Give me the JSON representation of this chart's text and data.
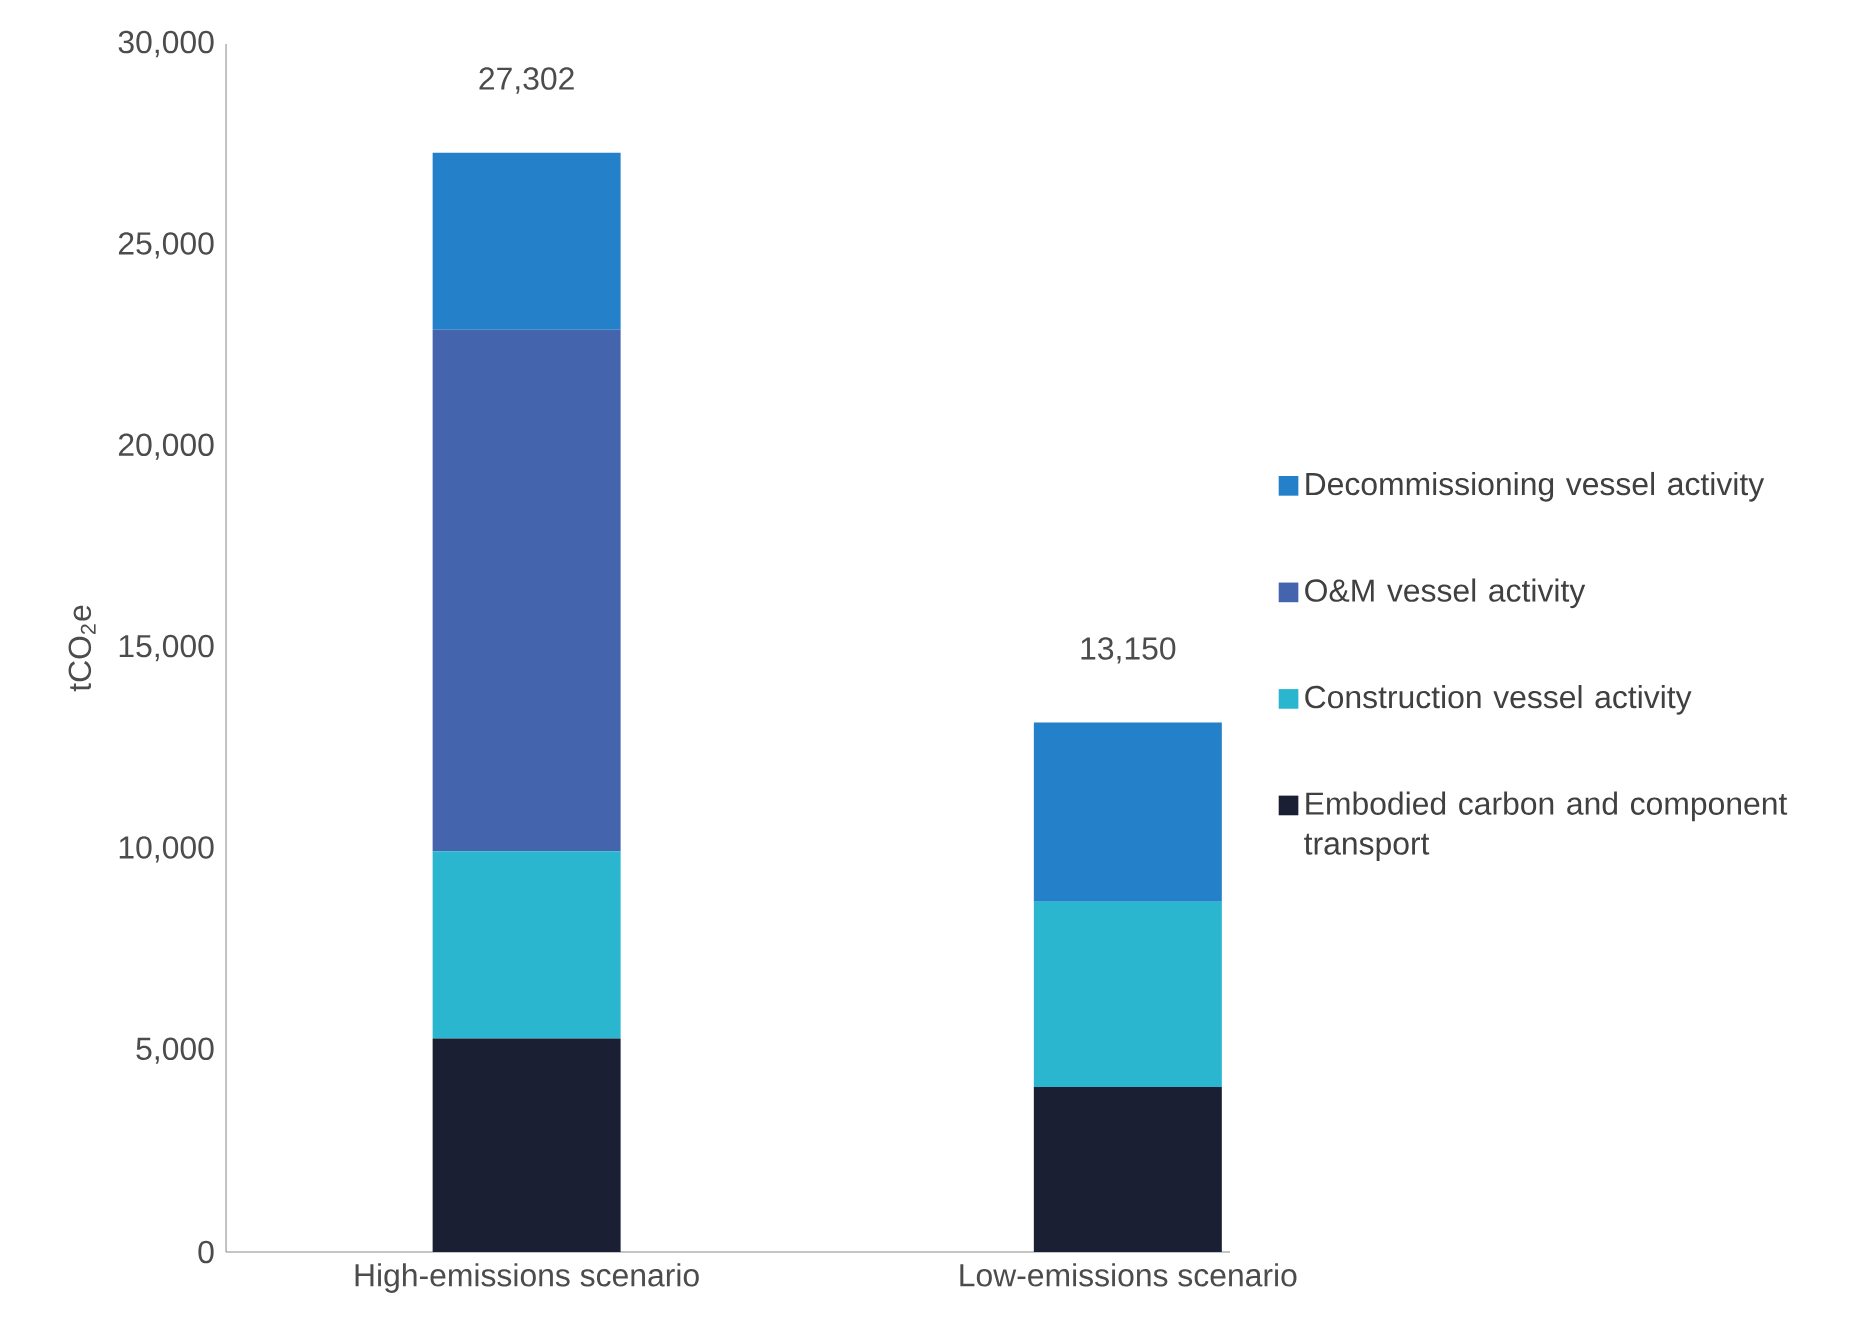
{
  "chart_data": {
    "type": "bar",
    "stacked": true,
    "ylabel": "tCO$_{2}$e",
    "categories": [
      "High-emissions scenario",
      "Low-emissions scenario"
    ],
    "series": [
      {
        "name": "Embodied carbon and component transport",
        "color": "#1a1f33",
        "values": [
          5300,
          4100
        ]
      },
      {
        "name": "Construction vessel activity",
        "color": "#29b6ce",
        "values": [
          4650,
          4600
        ]
      },
      {
        "name": "O&M vessel activity",
        "color": "#4464ad",
        "values": [
          12950,
          0
        ]
      },
      {
        "name": "Decommissioning vessel activity",
        "color": "#2480c8",
        "values": [
          4402,
          4450
        ]
      }
    ],
    "totals": [
      "27,302",
      "13,150"
    ],
    "ylim": [
      0,
      30000
    ],
    "yticks": [
      0,
      {
        "value": 5000,
        "label": "5,000"
      },
      {
        "value": 10000,
        "label": "10,000"
      },
      {
        "value": 15000,
        "label": "15,000"
      },
      {
        "value": 20000,
        "label": "20,000"
      },
      {
        "value": 25000,
        "label": "25,000"
      },
      {
        "value": 30000,
        "label": "30,000"
      }
    ],
    "legend": "right"
  }
}
